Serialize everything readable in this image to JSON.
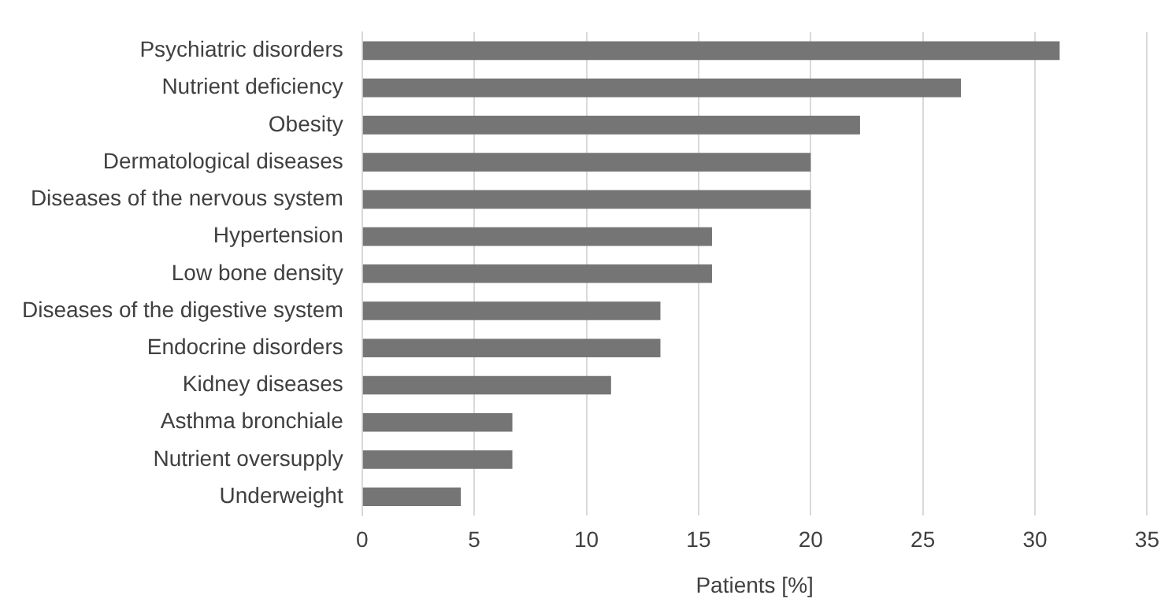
{
  "chart_data": {
    "type": "bar",
    "orientation": "horizontal",
    "xlabel": "Patients [%]",
    "categories": [
      "Psychiatric disorders",
      "Nutrient deficiency",
      "Obesity",
      "Dermatological diseases",
      "Diseases of the nervous system",
      "Hypertension",
      "Low bone density",
      "Diseases of the digestive system",
      "Endocrine disorders",
      "Kidney diseases",
      "Asthma bronchiale",
      "Nutrient oversupply",
      "Underweight"
    ],
    "values": [
      31.1,
      26.7,
      22.2,
      20,
      20,
      15.6,
      15.6,
      13.3,
      13.3,
      11.1,
      6.7,
      6.7,
      4.4
    ],
    "color": "#757575",
    "xlim": [
      0,
      35
    ],
    "xticks": [
      0,
      5,
      10,
      15,
      20,
      25,
      30,
      35
    ],
    "grid": "x",
    "legend": false
  }
}
